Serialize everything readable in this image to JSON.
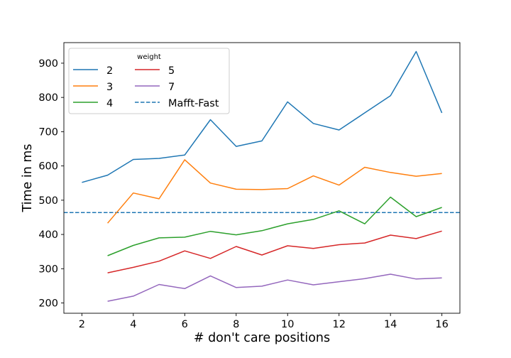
{
  "chart_data": {
    "type": "line",
    "xlabel": "# don't care positions",
    "ylabel": "Time in ms",
    "xlim": [
      1.3,
      16.7
    ],
    "ylim": [
      170,
      960
    ],
    "xticks": [
      2,
      4,
      6,
      8,
      10,
      12,
      14,
      16
    ],
    "yticks": [
      200,
      300,
      400,
      500,
      600,
      700,
      800,
      900
    ],
    "legend": {
      "title": "weight",
      "position": "top-left",
      "columns": 2
    },
    "series": [
      {
        "name": "2",
        "color": "#1f77b4",
        "x": [
          2,
          3,
          4,
          5,
          6,
          7,
          8,
          9,
          10,
          11,
          12,
          13,
          14,
          15,
          16
        ],
        "y": [
          552,
          573,
          619,
          622,
          632,
          735,
          657,
          673,
          787,
          724,
          705,
          755,
          805,
          934,
          755
        ]
      },
      {
        "name": "3",
        "color": "#ff7f0e",
        "x": [
          3,
          4,
          5,
          6,
          7,
          8,
          9,
          10,
          11,
          12,
          13,
          14,
          15,
          16
        ],
        "y": [
          433,
          521,
          504,
          618,
          550,
          532,
          531,
          534,
          571,
          544,
          596,
          581,
          570,
          578
        ]
      },
      {
        "name": "4",
        "color": "#2ca02c",
        "x": [
          3,
          4,
          5,
          6,
          7,
          8,
          9,
          10,
          11,
          12,
          13,
          14,
          15,
          16
        ],
        "y": [
          338,
          368,
          390,
          392,
          409,
          399,
          411,
          431,
          444,
          469,
          431,
          509,
          452,
          479
        ]
      },
      {
        "name": "5",
        "color": "#d62728",
        "x": [
          3,
          4,
          5,
          6,
          7,
          8,
          9,
          10,
          11,
          12,
          13,
          14,
          15,
          16
        ],
        "y": [
          288,
          304,
          322,
          352,
          330,
          365,
          340,
          367,
          359,
          370,
          375,
          398,
          388,
          410
        ]
      },
      {
        "name": "7",
        "color": "#9467bd",
        "x": [
          3,
          4,
          5,
          6,
          7,
          8,
          9,
          10,
          11,
          12,
          13,
          14,
          15,
          16
        ],
        "y": [
          205,
          220,
          254,
          242,
          279,
          245,
          249,
          267,
          253,
          262,
          271,
          284,
          270,
          273
        ]
      }
    ],
    "reference_lines": [
      {
        "name": "Mafft-Fast",
        "y": 464,
        "color": "#1f77b4",
        "style": "dashed"
      }
    ]
  }
}
